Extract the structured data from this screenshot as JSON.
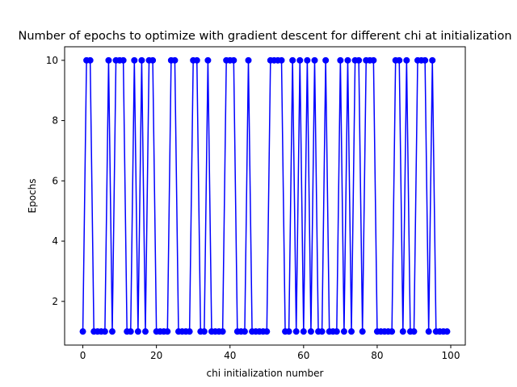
{
  "chart_data": {
    "type": "line",
    "title": "Number of epochs to optimize with gradient descent for different chi at initialization",
    "xlabel": "chi initialization number",
    "ylabel": "Epochs",
    "xlim": [
      -4.95,
      103.95
    ],
    "ylim": [
      0.55,
      10.45
    ],
    "xticks": [
      0,
      20,
      40,
      60,
      80,
      100
    ],
    "yticks": [
      2,
      4,
      6,
      8,
      10
    ],
    "grid": false,
    "legend": "none",
    "marker": "circle",
    "line_color": "#0000ff",
    "series": [
      {
        "x": [
          0,
          1,
          2,
          3,
          4,
          5,
          6,
          7,
          8,
          9,
          10,
          11,
          12,
          13,
          14,
          15,
          16,
          17,
          18,
          19,
          20,
          21,
          22,
          23,
          24,
          25,
          26,
          27,
          28,
          29,
          30,
          31,
          32,
          33,
          34,
          35,
          36,
          37,
          38,
          39,
          40,
          41,
          42,
          43,
          44,
          45,
          46,
          47,
          48,
          49,
          50,
          51,
          52,
          53,
          54,
          55,
          56,
          57,
          58,
          59,
          60,
          61,
          62,
          63,
          64,
          65,
          66,
          67,
          68,
          69,
          70,
          71,
          72,
          73,
          74,
          75,
          76,
          77,
          78,
          79,
          80,
          81,
          82,
          83,
          84,
          85,
          86,
          87,
          88,
          89,
          90,
          91,
          92,
          93,
          94,
          95,
          96,
          97,
          98,
          99
        ],
        "values": [
          1,
          10,
          10,
          1,
          1,
          1,
          1,
          10,
          1,
          10,
          10,
          10,
          1,
          1,
          10,
          1,
          10,
          1,
          10,
          10,
          1,
          1,
          1,
          1,
          10,
          10,
          1,
          1,
          1,
          1,
          10,
          10,
          1,
          1,
          10,
          1,
          1,
          1,
          1,
          10,
          10,
          10,
          1,
          1,
          1,
          10,
          1,
          1,
          1,
          1,
          1,
          10,
          10,
          10,
          10,
          1,
          1,
          10,
          1,
          10,
          1,
          10,
          1,
          10,
          1,
          1,
          10,
          1,
          1,
          1,
          10,
          1,
          10,
          1,
          10,
          10,
          1,
          10,
          10,
          10,
          1,
          1,
          1,
          1,
          1,
          10,
          10,
          1,
          10,
          1,
          1,
          10,
          10,
          10,
          1,
          10,
          1,
          1,
          1,
          1
        ]
      }
    ]
  }
}
